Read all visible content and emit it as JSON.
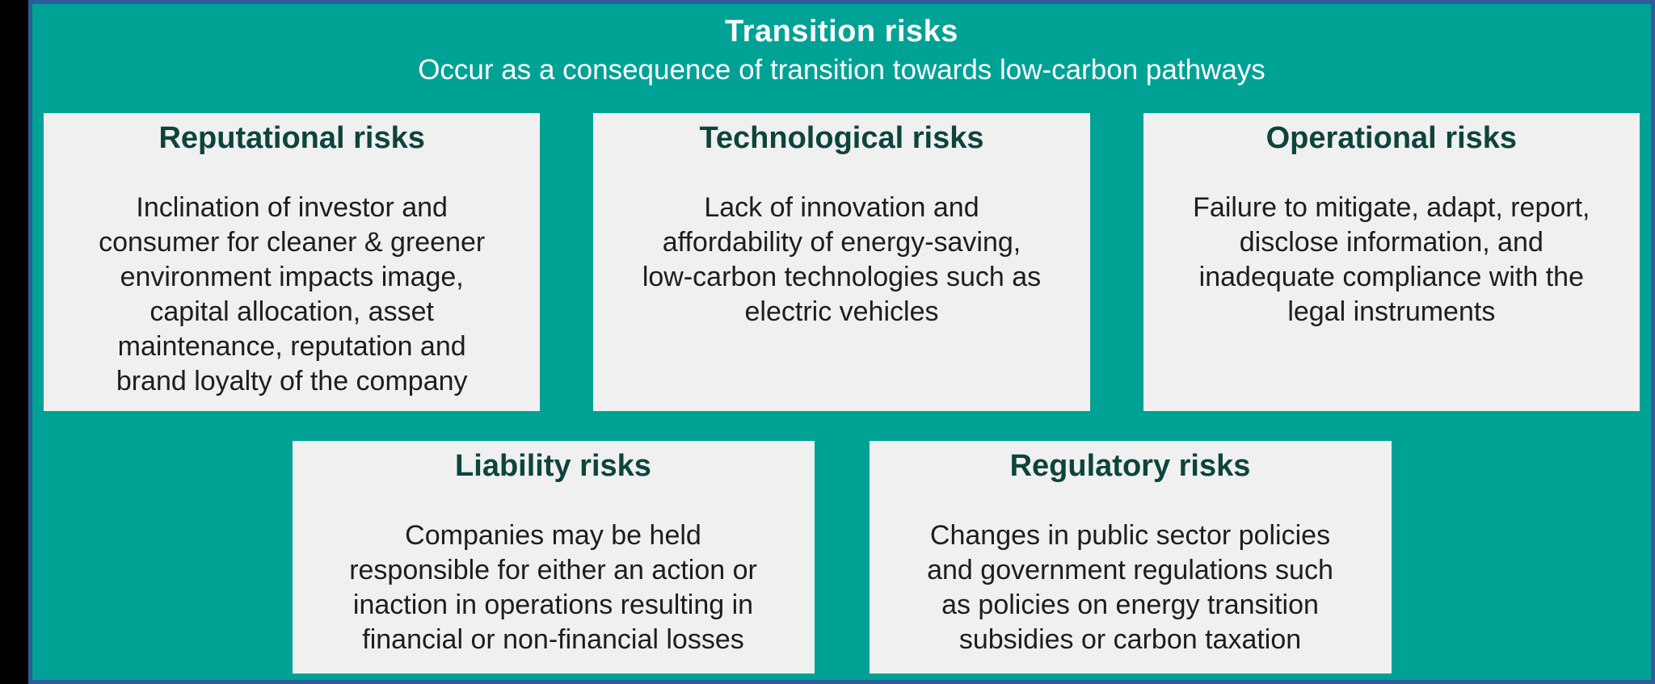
{
  "title": "Transition risks",
  "subtitle": "Occur as a consequence of transition towards low-carbon pathways",
  "boxes": [
    {
      "title": "Reputational risks",
      "description": "Inclination of investor and\nconsumer for cleaner & greener\nenvironment impacts image,\ncapital allocation, asset\nmaintenance, reputation and\nbrand loyalty of the company"
    },
    {
      "title": "Technological risks",
      "description": "Lack of innovation and\naffordability of energy-saving,\nlow-carbon technologies such as\nelectric vehicles"
    },
    {
      "title": "Operational risks",
      "description": "Failure to mitigate, adapt, report,\ndisclose information, and\ninadequate compliance with the\nlegal instruments"
    },
    {
      "title": "Liability risks",
      "description": "Companies may be held\nresponsible for either an action or\ninaction in operations resulting in\nfinancial or non-financial losses"
    },
    {
      "title": "Regulatory risks",
      "description": "Changes in public sector policies\nand government regulations such\nas policies on energy transition\nsubsidies or carbon taxation"
    }
  ],
  "colors": {
    "background": "#00A295",
    "border": "#2F5B99",
    "box_bg": "#F0F0F0",
    "heading": "#0D443C",
    "body_text": "#1D1D1D",
    "title_text": "#FFFFFF",
    "outer_bg": "#000000"
  }
}
